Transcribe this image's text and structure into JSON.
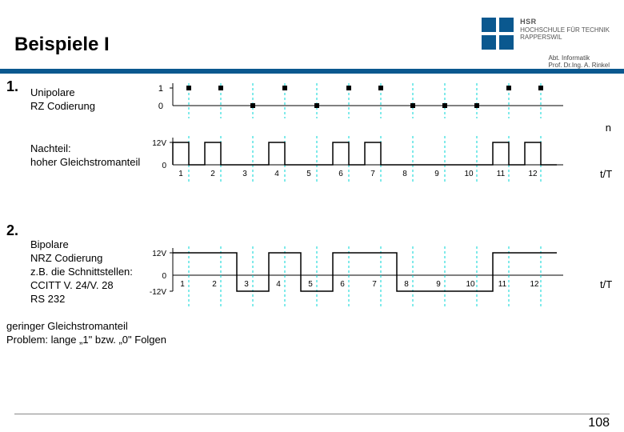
{
  "header": {
    "title": "Beispiele I",
    "logo_inst_line1": "HSR",
    "logo_inst_line2": "HOCHSCHULE FÜR TECHNIK",
    "logo_inst_line3": "RAPPERSWIL",
    "dept": "Abt. Informatik",
    "prof": "Prof. Dr.Ing. A. Rinkel",
    "logo_color": "#0a588f",
    "bar_color": "#0a588f"
  },
  "section1": {
    "num": "1.",
    "label1_line1": "Unipolare",
    "label1_line2": "RZ Codierung",
    "label2_line1": "Nachteil:",
    "label2_line2": "hoher Gleichstromanteil",
    "timeline_n": "n",
    "timeline_tT": "t/T",
    "bit_y": {
      "lvl1": "1",
      "lvl0": "0"
    },
    "sig_y": {
      "hi": "12V",
      "lo": "0"
    },
    "bits": [
      1,
      1,
      0,
      1,
      0,
      1,
      1,
      0,
      0,
      0,
      1,
      1
    ],
    "pulse_levels": [
      1,
      1,
      0,
      1,
      0,
      1,
      1,
      0,
      0,
      0,
      1,
      1
    ],
    "xticks": [
      "1",
      "2",
      "3",
      "4",
      "5",
      "6",
      "7",
      "8",
      "9",
      "10",
      "11",
      "12"
    ],
    "guide_color": "#00d4d4",
    "line_color": "#000000",
    "bit_step": 40,
    "origin_x": 18,
    "bit_top_y": 8,
    "bit_bottom_y": 30,
    "sig_top_y": 8,
    "sig_baseline_y": 36,
    "dot_size": 6
  },
  "section2": {
    "num": "2.",
    "label1_line1": "Bipolare",
    "label1_line2": "NRZ Codierung",
    "label1_line3": "z.B. die Schnittstellen:",
    "label1_line4": "CCITT V. 24/V. 28",
    "label1_line5": "RS 232",
    "label2_line1": "geringer Gleichstromanteil",
    "label2_line2": "Problem: lange „1\" bzw. „0\" Folgen",
    "sig_y": {
      "hi": "12V",
      "mid": "0",
      "lo": "-12V"
    },
    "bits": [
      1,
      1,
      0,
      1,
      0,
      1,
      1,
      0,
      0,
      0,
      1,
      1
    ],
    "xticks": [
      "1",
      "2",
      "3",
      "4",
      "5",
      "6",
      "7",
      "8",
      "9",
      "10",
      "11",
      "12"
    ],
    "timeline_tT": "t/T",
    "guide_color": "#00d4d4",
    "line_color": "#000000",
    "bit_step": 40,
    "origin_x": 18,
    "top_y": 8,
    "mid_y": 36,
    "bot_y": 56
  },
  "footer": {
    "page": "108"
  }
}
